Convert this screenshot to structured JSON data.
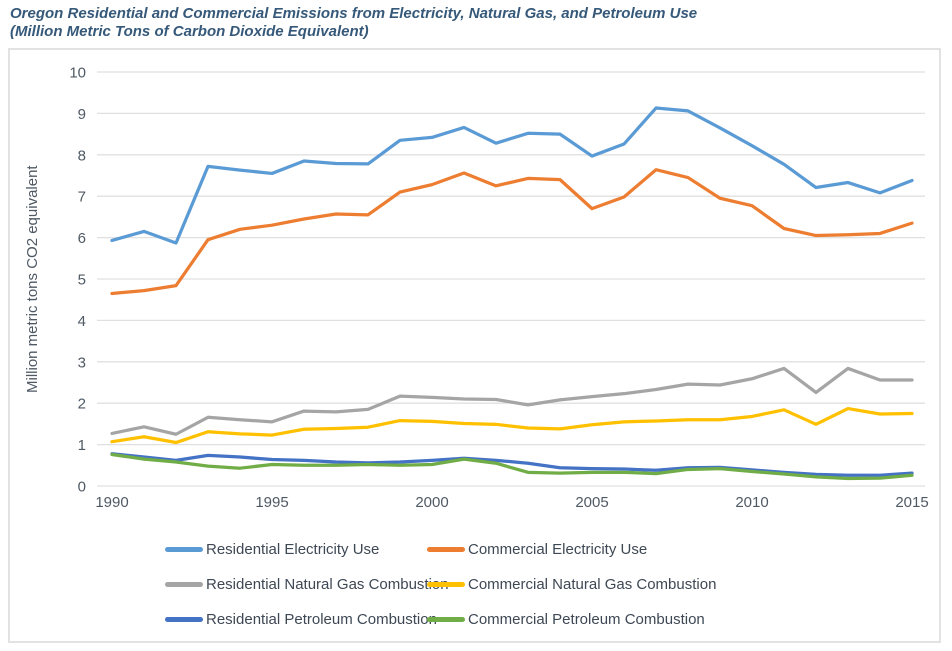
{
  "figure": {
    "title_line1": "Oregon Residential and Commercial Emissions from Electricity, Natural Gas, and Petroleum Use",
    "title_line2": "(Million Metric Tons of Carbon Dioxide Equivalent)"
  },
  "colors": {
    "title_text": "#36597A",
    "grid": "#E0E0E0",
    "tick_text": "#4F5964",
    "legend_text": "#3E4854",
    "frame_border": "#E2E2E2"
  },
  "chart_data": {
    "type": "line",
    "title": "Oregon Residential and Commercial Emissions from Electricity, Natural Gas, and Petroleum Use (Million Metric Tons of Carbon Dioxide Equivalent)",
    "xlabel": "",
    "ylabel": "Million metric tons CO2 equivalent",
    "xlim": [
      1990,
      2015
    ],
    "ylim": [
      0,
      10
    ],
    "grid": true,
    "legend_position": "bottom",
    "xticks": [
      1990,
      1995,
      2000,
      2005,
      2010,
      2015
    ],
    "yticks": [
      0,
      1,
      2,
      3,
      4,
      5,
      6,
      7,
      8,
      9,
      10
    ],
    "x": [
      1990,
      1991,
      1992,
      1993,
      1994,
      1995,
      1996,
      1997,
      1998,
      1999,
      2000,
      2001,
      2002,
      2003,
      2004,
      2005,
      2006,
      2007,
      2008,
      2009,
      2010,
      2011,
      2012,
      2013,
      2014,
      2015
    ],
    "series": [
      {
        "name": "Residential Electricity Use",
        "color": "#5B9BD5",
        "values": [
          5.93,
          6.15,
          5.87,
          7.72,
          7.63,
          7.55,
          7.85,
          7.79,
          7.78,
          8.35,
          8.42,
          8.66,
          8.28,
          8.52,
          8.5,
          7.97,
          8.26,
          9.13,
          9.06,
          8.65,
          8.22,
          7.77,
          7.21,
          7.33,
          7.08,
          7.38
        ]
      },
      {
        "name": "Commercial Electricity Use",
        "color": "#ED7D31",
        "values": [
          4.65,
          4.72,
          4.84,
          5.95,
          6.2,
          6.3,
          6.45,
          6.57,
          6.55,
          7.1,
          7.28,
          7.56,
          7.25,
          7.43,
          7.4,
          6.7,
          6.98,
          7.64,
          7.45,
          6.95,
          6.77,
          6.22,
          6.05,
          6.07,
          6.1,
          6.35
        ]
      },
      {
        "name": "Residential Natural Gas Combustion",
        "color": "#A5A5A5",
        "values": [
          1.27,
          1.43,
          1.25,
          1.66,
          1.6,
          1.55,
          1.81,
          1.79,
          1.85,
          2.17,
          2.14,
          2.1,
          2.09,
          1.96,
          2.08,
          2.16,
          2.23,
          2.33,
          2.46,
          2.44,
          2.59,
          2.84,
          2.26,
          2.84,
          2.56,
          2.56
        ]
      },
      {
        "name": "Commercial Natural Gas Combustion",
        "color": "#FFC000",
        "values": [
          1.07,
          1.19,
          1.05,
          1.31,
          1.26,
          1.23,
          1.37,
          1.39,
          1.42,
          1.58,
          1.56,
          1.51,
          1.49,
          1.4,
          1.38,
          1.48,
          1.55,
          1.57,
          1.6,
          1.6,
          1.68,
          1.84,
          1.49,
          1.87,
          1.74,
          1.75
        ]
      },
      {
        "name": "Residential Petroleum Combustion",
        "color": "#4472C4",
        "values": [
          0.78,
          0.7,
          0.62,
          0.74,
          0.7,
          0.64,
          0.62,
          0.58,
          0.56,
          0.58,
          0.62,
          0.67,
          0.62,
          0.55,
          0.44,
          0.42,
          0.41,
          0.38,
          0.44,
          0.45,
          0.39,
          0.33,
          0.28,
          0.26,
          0.26,
          0.31
        ]
      },
      {
        "name": "Commercial Petroleum Combustion",
        "color": "#70AD47",
        "values": [
          0.76,
          0.65,
          0.58,
          0.48,
          0.43,
          0.52,
          0.5,
          0.5,
          0.52,
          0.5,
          0.52,
          0.65,
          0.55,
          0.33,
          0.31,
          0.33,
          0.33,
          0.3,
          0.4,
          0.42,
          0.35,
          0.29,
          0.22,
          0.18,
          0.19,
          0.26
        ]
      }
    ]
  }
}
